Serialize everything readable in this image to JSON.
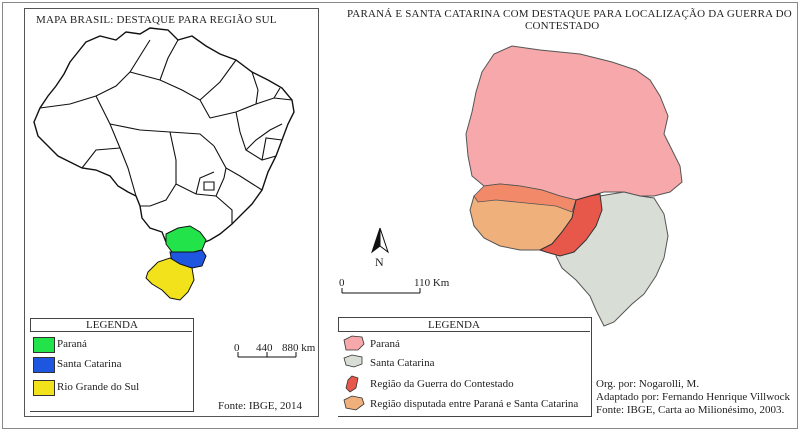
{
  "left_panel": {
    "title": "MAPA BRASIL: DESTAQUE PARA REGIÃO SUL",
    "legend": {
      "heading": "LEGENDA",
      "items": [
        {
          "label": "Paraná",
          "color": "#22e34a"
        },
        {
          "label": "Santa Catarina",
          "color": "#1e56e0"
        },
        {
          "label": "Rio Grande do Sul",
          "color": "#f2e21c"
        }
      ]
    },
    "scale": {
      "zero": "0",
      "mid": "440",
      "end": "880 km"
    },
    "source": "Fonte: IBGE, 2014"
  },
  "right_panel": {
    "title_line1": "PARANÁ E SANTA CATARINA COM DESTAQUE PARA LOCALIZAÇÃO DA GUERRA DO",
    "title_line2": "CONTESTADO",
    "north": "N",
    "scale": {
      "zero": "0",
      "end": "110 Km"
    },
    "legend": {
      "heading": "LEGENDA",
      "items": [
        {
          "label": "Paraná",
          "color": "#f6a8aa"
        },
        {
          "label": "Santa Catarina",
          "color": "#d8ddd6"
        },
        {
          "label": "Região da Guerra do Contestado",
          "color": "#e8584a"
        },
        {
          "label": "Região disputada entre Paraná e Santa Catarina",
          "color": "#f0b07c"
        }
      ]
    },
    "credits": {
      "org": "Org. por: Nogarolli, M.",
      "adapted": "Adaptado por: Fernando Henrique Villwock",
      "source": "Fonte: IBGE, Carta ao Milionésimo, 2003."
    }
  }
}
